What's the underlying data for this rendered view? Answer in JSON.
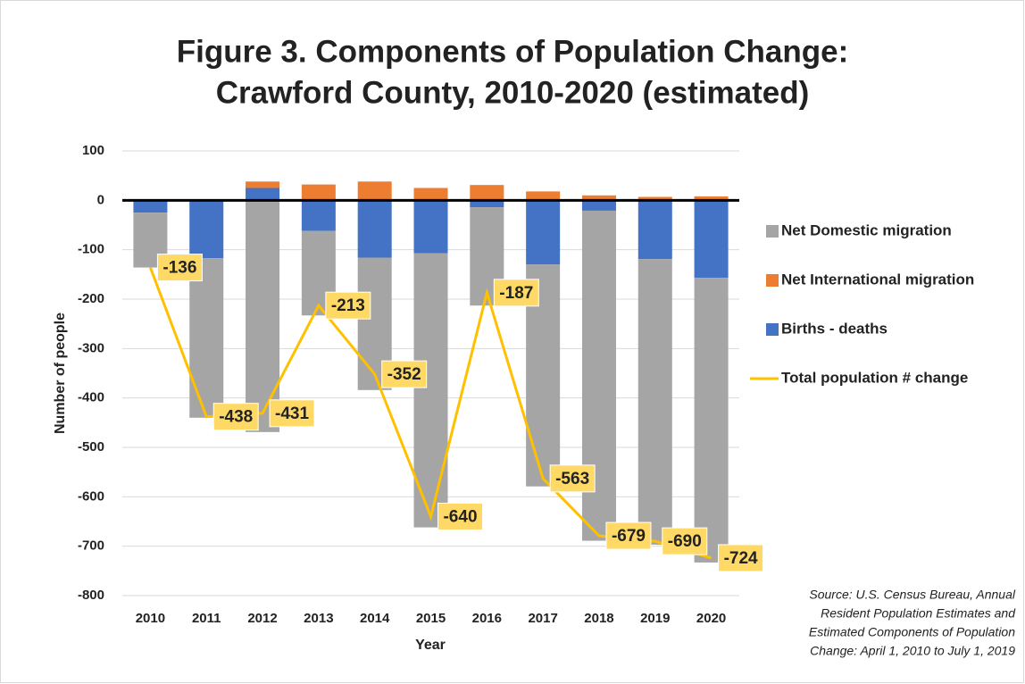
{
  "chart_data": {
    "type": "bar",
    "title": [
      "Figure 3. Components of Population Change:",
      "Crawford County, 2010-2020 (estimated)"
    ],
    "x_label": "Year",
    "y_label": "Number of people",
    "categories": [
      "2010",
      "2011",
      "2012",
      "2013",
      "2014",
      "2015",
      "2016",
      "2017",
      "2018",
      "2019",
      "2020"
    ],
    "series": [
      {
        "name": "Net Domestic migration",
        "color": "#a5a5a5",
        "type": "bar",
        "values": [
          -111,
          -323,
          -469,
          -171,
          -268,
          -555,
          -199,
          -449,
          -668,
          -578,
          -576
        ]
      },
      {
        "name": "Net International migration",
        "color": "#ed7d31",
        "type": "bar",
        "values": [
          0,
          2,
          13,
          32,
          38,
          25,
          31,
          18,
          10,
          7,
          8
        ]
      },
      {
        "name": "Births - deaths",
        "color": "#4472c4",
        "type": "bar",
        "values": [
          -25,
          -117,
          25,
          -62,
          -116,
          -107,
          -14,
          -130,
          -21,
          -119,
          -157
        ]
      },
      {
        "name": "Total population # change",
        "color": "#ffc000",
        "type": "line",
        "values": [
          -136,
          -438,
          -431,
          -213,
          -352,
          -640,
          -187,
          -563,
          -679,
          -690,
          -724
        ]
      }
    ],
    "ylim": [
      -800,
      100
    ],
    "yticks": [
      -800,
      -700,
      -600,
      -500,
      -400,
      -300,
      -200,
      -100,
      0,
      100
    ],
    "grid": true,
    "legend": "right",
    "source": [
      "Source: U.S. Census Bureau, Annual",
      "Resident Population Estimates and",
      "Estimated Components of Population",
      "Change: April 1, 2010 to July 1, 2019"
    ]
  }
}
